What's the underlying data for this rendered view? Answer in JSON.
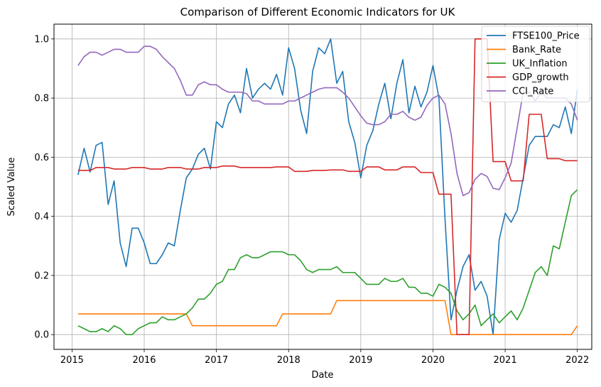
{
  "chart_data": {
    "type": "line",
    "title": "Comparison of Different Economic Indicators for UK",
    "xlabel": "Date",
    "ylabel": "Scaled Value",
    "xlim": [
      2014.75,
      2022.2
    ],
    "ylim": [
      -0.05,
      1.05
    ],
    "x_ticks": [
      "2015",
      "2016",
      "2017",
      "2018",
      "2019",
      "2020",
      "2021",
      "2022"
    ],
    "y_ticks": [
      "0.0",
      "0.2",
      "0.4",
      "0.6",
      "0.8",
      "1.0"
    ],
    "grid": true,
    "legend_position": "top-right",
    "x": [
      2015.083,
      2015.167,
      2015.25,
      2015.333,
      2015.417,
      2015.5,
      2015.583,
      2015.667,
      2015.75,
      2015.833,
      2015.917,
      2016.0,
      2016.083,
      2016.167,
      2016.25,
      2016.333,
      2016.417,
      2016.5,
      2016.583,
      2016.667,
      2016.75,
      2016.833,
      2016.917,
      2017.0,
      2017.083,
      2017.167,
      2017.25,
      2017.333,
      2017.417,
      2017.5,
      2017.583,
      2017.667,
      2017.75,
      2017.833,
      2017.917,
      2018.0,
      2018.083,
      2018.167,
      2018.25,
      2018.333,
      2018.417,
      2018.5,
      2018.583,
      2018.667,
      2018.75,
      2018.833,
      2018.917,
      2019.0,
      2019.083,
      2019.167,
      2019.25,
      2019.333,
      2019.417,
      2019.5,
      2019.583,
      2019.667,
      2019.75,
      2019.833,
      2019.917,
      2020.0,
      2020.083,
      2020.167,
      2020.25,
      2020.333,
      2020.417,
      2020.5,
      2020.583,
      2020.667,
      2020.75,
      2020.833,
      2020.917,
      2021.0,
      2021.083,
      2021.167,
      2021.25,
      2021.333,
      2021.417,
      2021.5,
      2021.583,
      2021.667,
      2021.75,
      2021.833,
      2021.917,
      2022.0
    ],
    "series": [
      {
        "name": "FTSE100_Price",
        "color": "#1f77b4",
        "values": [
          0.54,
          0.63,
          0.55,
          0.64,
          0.65,
          0.44,
          0.52,
          0.31,
          0.23,
          0.36,
          0.36,
          0.31,
          0.24,
          0.24,
          0.27,
          0.31,
          0.3,
          0.42,
          0.53,
          0.56,
          0.61,
          0.63,
          0.56,
          0.72,
          0.7,
          0.78,
          0.81,
          0.75,
          0.9,
          0.8,
          0.83,
          0.85,
          0.83,
          0.88,
          0.81,
          0.97,
          0.9,
          0.76,
          0.68,
          0.89,
          0.97,
          0.95,
          1.0,
          0.85,
          0.89,
          0.72,
          0.65,
          0.53,
          0.64,
          0.69,
          0.78,
          0.85,
          0.73,
          0.85,
          0.93,
          0.75,
          0.84,
          0.77,
          0.82,
          0.91,
          0.8,
          0.39,
          0.05,
          0.15,
          0.23,
          0.27,
          0.15,
          0.18,
          0.13,
          0.0,
          0.32,
          0.41,
          0.38,
          0.42,
          0.53,
          0.64,
          0.67,
          0.67,
          0.67,
          0.71,
          0.7,
          0.77,
          0.68,
          0.83
        ]
      },
      {
        "name": "Bank_Rate",
        "color": "#ff7f0e",
        "values": [
          0.07,
          0.07,
          0.07,
          0.07,
          0.07,
          0.07,
          0.07,
          0.07,
          0.07,
          0.07,
          0.07,
          0.07,
          0.07,
          0.07,
          0.07,
          0.07,
          0.07,
          0.07,
          0.07,
          0.03,
          0.03,
          0.03,
          0.03,
          0.03,
          0.03,
          0.03,
          0.03,
          0.03,
          0.03,
          0.03,
          0.03,
          0.03,
          0.03,
          0.03,
          0.07,
          0.07,
          0.07,
          0.07,
          0.07,
          0.07,
          0.07,
          0.07,
          0.07,
          0.115,
          0.115,
          0.115,
          0.115,
          0.115,
          0.115,
          0.115,
          0.115,
          0.115,
          0.115,
          0.115,
          0.115,
          0.115,
          0.115,
          0.115,
          0.115,
          0.115,
          0.115,
          0.115,
          0.0,
          0.0,
          0.0,
          0.0,
          0.0,
          0.0,
          0.0,
          0.0,
          0.0,
          0.0,
          0.0,
          0.0,
          0.0,
          0.0,
          0.0,
          0.0,
          0.0,
          0.0,
          0.0,
          0.0,
          0.0,
          0.03
        ]
      },
      {
        "name": "UK_Inflation",
        "color": "#2ca02c",
        "values": [
          0.03,
          0.02,
          0.01,
          0.01,
          0.02,
          0.01,
          0.03,
          0.02,
          0.0,
          0.0,
          0.02,
          0.03,
          0.04,
          0.04,
          0.06,
          0.05,
          0.05,
          0.06,
          0.07,
          0.09,
          0.12,
          0.12,
          0.14,
          0.17,
          0.18,
          0.22,
          0.22,
          0.26,
          0.27,
          0.26,
          0.26,
          0.27,
          0.28,
          0.28,
          0.28,
          0.27,
          0.27,
          0.25,
          0.22,
          0.21,
          0.22,
          0.22,
          0.22,
          0.23,
          0.21,
          0.21,
          0.21,
          0.19,
          0.17,
          0.17,
          0.17,
          0.19,
          0.18,
          0.18,
          0.19,
          0.16,
          0.16,
          0.14,
          0.14,
          0.13,
          0.17,
          0.16,
          0.14,
          0.08,
          0.05,
          0.07,
          0.1,
          0.03,
          0.05,
          0.07,
          0.04,
          0.06,
          0.08,
          0.05,
          0.09,
          0.15,
          0.21,
          0.23,
          0.2,
          0.3,
          0.29,
          0.38,
          0.47,
          0.49
        ]
      },
      {
        "name": "GDP_growth",
        "color": "#d62728",
        "values": [
          0.555,
          0.555,
          0.555,
          0.565,
          0.565,
          0.565,
          0.56,
          0.56,
          0.56,
          0.565,
          0.565,
          0.565,
          0.56,
          0.56,
          0.56,
          0.565,
          0.565,
          0.565,
          0.56,
          0.56,
          0.56,
          0.565,
          0.565,
          0.565,
          0.57,
          0.57,
          0.57,
          0.565,
          0.565,
          0.565,
          0.565,
          0.565,
          0.565,
          0.567,
          0.567,
          0.567,
          0.552,
          0.552,
          0.552,
          0.555,
          0.555,
          0.555,
          0.557,
          0.557,
          0.557,
          0.552,
          0.552,
          0.552,
          0.567,
          0.567,
          0.567,
          0.557,
          0.557,
          0.557,
          0.567,
          0.567,
          0.567,
          0.548,
          0.548,
          0.548,
          0.475,
          0.475,
          0.475,
          0.0,
          0.0,
          0.0,
          1.0,
          1.0,
          1.0,
          0.585,
          0.585,
          0.585,
          0.52,
          0.52,
          0.52,
          0.745,
          0.745,
          0.745,
          0.595,
          0.595,
          0.595,
          0.588,
          0.588,
          0.588
        ]
      },
      {
        "name": "CCI_Rate",
        "color": "#9467bd",
        "values": [
          0.91,
          0.94,
          0.955,
          0.955,
          0.945,
          0.955,
          0.965,
          0.965,
          0.955,
          0.955,
          0.955,
          0.975,
          0.975,
          0.965,
          0.94,
          0.92,
          0.9,
          0.86,
          0.81,
          0.81,
          0.845,
          0.855,
          0.845,
          0.845,
          0.83,
          0.82,
          0.82,
          0.82,
          0.815,
          0.79,
          0.79,
          0.78,
          0.78,
          0.78,
          0.78,
          0.79,
          0.79,
          0.8,
          0.81,
          0.82,
          0.83,
          0.835,
          0.835,
          0.835,
          0.82,
          0.8,
          0.77,
          0.74,
          0.715,
          0.71,
          0.71,
          0.72,
          0.745,
          0.745,
          0.755,
          0.735,
          0.725,
          0.735,
          0.775,
          0.8,
          0.81,
          0.78,
          0.68,
          0.545,
          0.47,
          0.48,
          0.525,
          0.545,
          0.535,
          0.495,
          0.49,
          0.53,
          0.58,
          0.7,
          0.82,
          0.82,
          0.79,
          0.82,
          0.8,
          0.8,
          0.8,
          0.8,
          0.78,
          0.725
        ]
      }
    ]
  }
}
